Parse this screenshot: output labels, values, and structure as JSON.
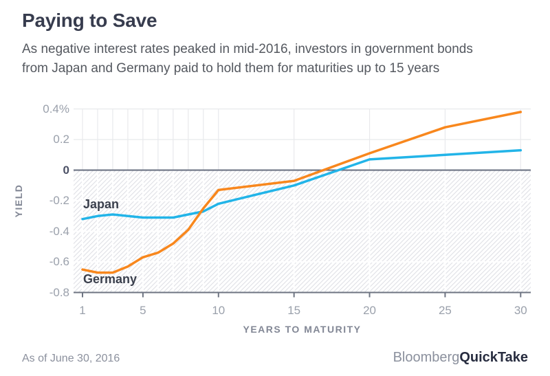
{
  "header": {
    "title": "Paying to Save",
    "subtitle_line1": "As negative interest rates peaked in mid-2016, investors in government bonds",
    "subtitle_line2": "from Japan and Germany paid to hold them for maturities up to 15 years"
  },
  "chart_data": {
    "type": "line",
    "title": "Paying to Save",
    "xlabel": "YEARS TO MATURITY",
    "ylabel": "YIELD",
    "xlim": [
      1,
      30
    ],
    "ylim": [
      -0.8,
      0.4
    ],
    "grid": true,
    "negative_region_hatched": true,
    "x": [
      1,
      2,
      3,
      4,
      5,
      6,
      7,
      8,
      9,
      10,
      15,
      20,
      25,
      30
    ],
    "series": [
      {
        "name": "Japan",
        "color": "#22b4e8",
        "values": [
          -0.32,
          -0.3,
          -0.29,
          -0.3,
          -0.31,
          -0.31,
          -0.31,
          -0.29,
          -0.27,
          -0.22,
          -0.1,
          0.07,
          0.1,
          0.13
        ]
      },
      {
        "name": "Germany",
        "color": "#f8871d",
        "values": [
          -0.65,
          -0.67,
          -0.67,
          -0.63,
          -0.57,
          -0.54,
          -0.48,
          -0.39,
          -0.25,
          -0.13,
          -0.07,
          0.11,
          0.28,
          0.38
        ]
      }
    ],
    "x_ticks": [
      1,
      5,
      10,
      15,
      20,
      25,
      30
    ],
    "y_ticks": [
      {
        "label": "0.4%",
        "value": 0.4
      },
      {
        "label": "0.2",
        "value": 0.2
      },
      {
        "label": "0",
        "value": 0
      },
      {
        "label": "-0.2",
        "value": -0.2
      },
      {
        "label": "-0.4",
        "value": -0.4
      },
      {
        "label": "-0.6",
        "value": -0.6
      },
      {
        "label": "-0.8",
        "value": -0.8
      }
    ],
    "gridline_years": [
      1,
      2,
      3,
      4,
      5,
      6,
      7,
      8,
      9,
      10,
      15,
      20,
      25,
      30
    ]
  },
  "footer": {
    "as_of": "As of June 30, 2016",
    "brand": "Bloomberg",
    "brand_bold": "QuickTake"
  },
  "colors": {
    "japan_line": "#22b4e8",
    "germany_line": "#f8871d",
    "grid": "#e8e9ec",
    "zero_line": "#656c7e",
    "axis_line": "#6e7482",
    "hatch": "#e2e3e8"
  }
}
